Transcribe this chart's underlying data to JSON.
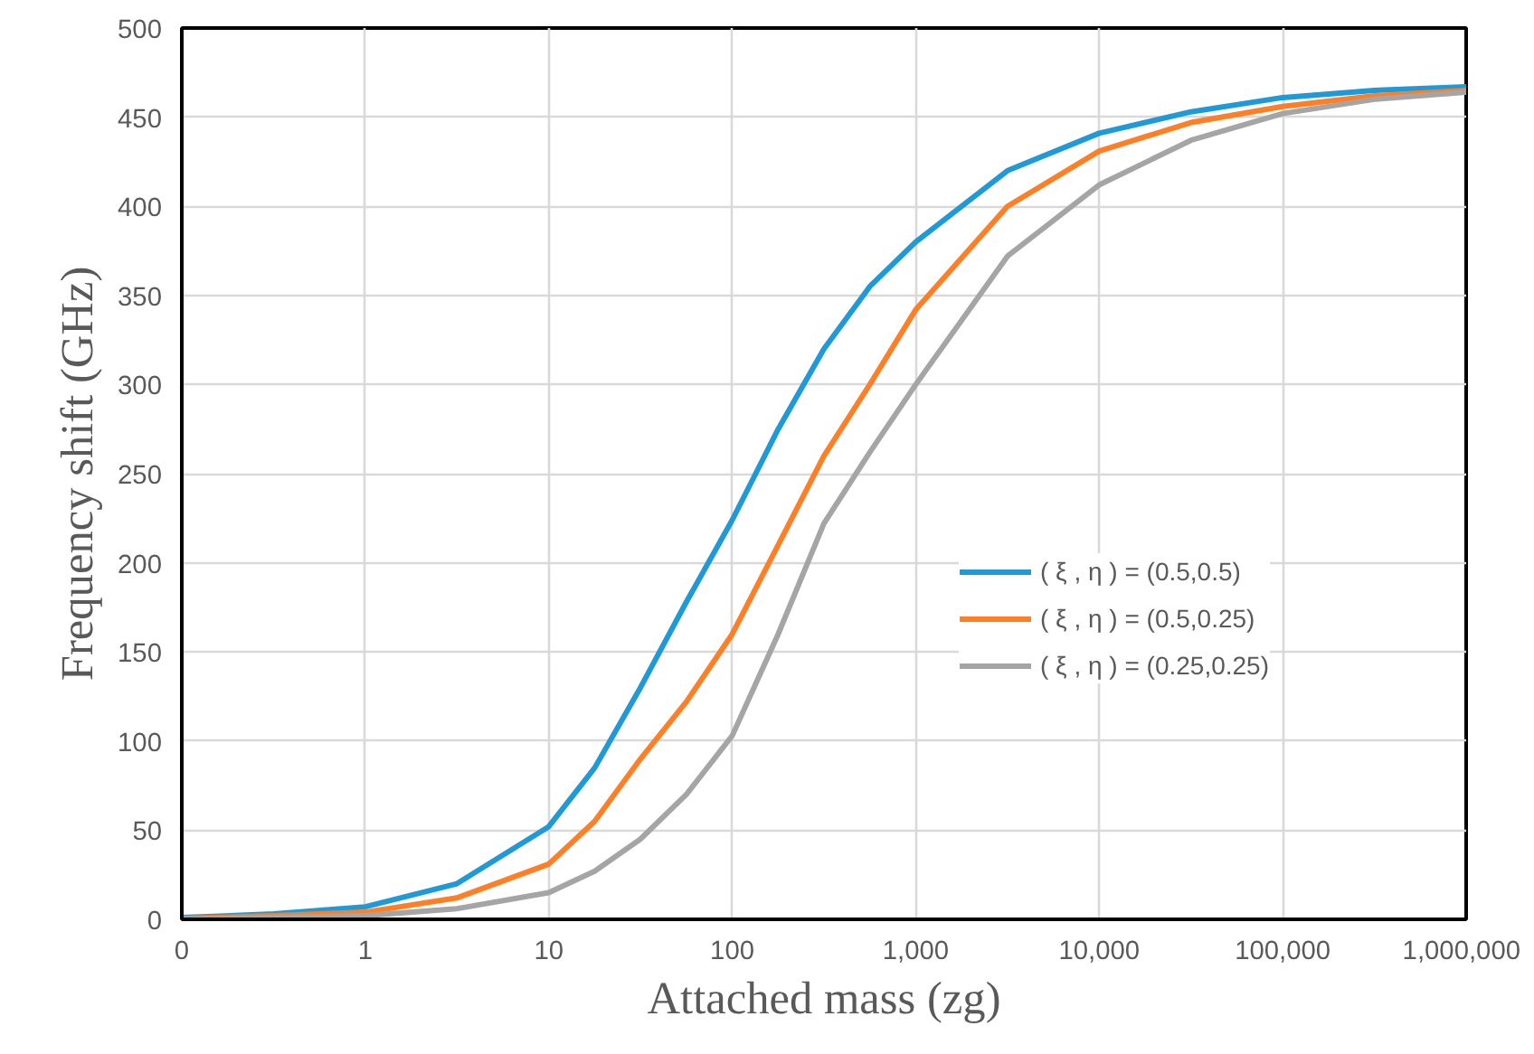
{
  "chart_data": {
    "type": "line",
    "xlabel": "Attached mass (zg)",
    "ylabel": "Frequency shift (GHz)",
    "log": "x",
    "grid": true,
    "legend": "bottom right",
    "marker": "none",
    "line_style": "solid",
    "x": [
      0.1,
      0.316,
      1,
      3.16,
      10,
      17.8,
      31.6,
      56.2,
      100,
      178,
      316,
      562,
      1000,
      3162,
      10000,
      31623,
      100000,
      316228,
      1000000
    ],
    "series": [
      {
        "name": "( ξ , η ) = (0.5,0.5)",
        "color": "#1f9ad6",
        "values": [
          1,
          3,
          7,
          20,
          52,
          85,
          130,
          178,
          224,
          275,
          320,
          355,
          380,
          420,
          441,
          453,
          461,
          465,
          467
        ]
      },
      {
        "name": "( ξ , η ) = (0.5,0.25)",
        "color": "#ff7f27",
        "values": [
          0.5,
          2,
          4,
          12,
          31,
          55,
          90,
          122,
          160,
          210,
          260,
          300,
          342,
          400,
          431,
          447,
          456,
          462,
          465
        ]
      },
      {
        "name": "( ξ , η ) = (0.25,0.25)",
        "color": "#a5a5a5",
        "values": [
          0,
          1,
          2,
          6,
          15,
          27,
          45,
          70,
          103,
          160,
          222,
          262,
          300,
          372,
          412,
          437,
          452,
          460,
          464
        ]
      }
    ],
    "xlim": [
      0.1,
      1000000
    ],
    "xticks": [
      {
        "value": 0.1,
        "label": "0"
      },
      1,
      10,
      100,
      {
        "value": 1000,
        "label": "1,000"
      },
      {
        "value": 10000,
        "label": "10,000"
      },
      {
        "value": 100000,
        "label": "100,000"
      },
      {
        "value": 1000000,
        "label": "1,000,000"
      }
    ],
    "ylim": [
      0,
      500
    ],
    "yticks": [
      0,
      50,
      100,
      150,
      200,
      250,
      300,
      350,
      400,
      450,
      500
    ]
  }
}
